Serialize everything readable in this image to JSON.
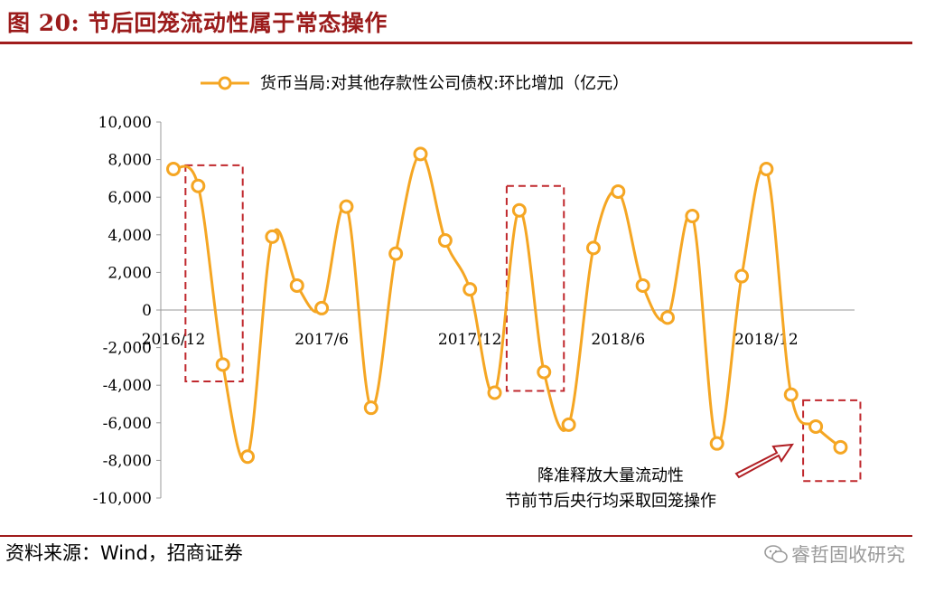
{
  "figure": {
    "title": "图 20:  节后回笼流动性属于常态操作",
    "source": "资料来源：Wind，招商证券",
    "watermark": "睿哲固收研究"
  },
  "colors": {
    "accent": "#a01c1c",
    "series": "#f5a623",
    "box": "#c0282d",
    "arrow": "#b01e23"
  },
  "chart_data": {
    "type": "line",
    "series": [
      {
        "name": "货币当局:对其他存款性公司债权:环比增加（亿元）",
        "values": [
          7500,
          6600,
          -2900,
          -7800,
          3900,
          1300,
          100,
          5500,
          -5200,
          3000,
          8300,
          3700,
          1100,
          -4400,
          5300,
          -3300,
          -6100,
          3300,
          6300,
          1300,
          -400,
          5000,
          -7100,
          1800,
          7500,
          -4500,
          -6200,
          -7300
        ]
      }
    ],
    "x_tick_labels": [
      {
        "label": "2016/12",
        "index": 0
      },
      {
        "label": "2017/6",
        "index": 6
      },
      {
        "label": "2017/12",
        "index": 12
      },
      {
        "label": "2018/6",
        "index": 18
      },
      {
        "label": "2018/12",
        "index": 24
      }
    ],
    "y_ticks": [
      10000,
      8000,
      6000,
      4000,
      2000,
      0,
      -2000,
      -4000,
      -6000,
      -8000,
      -10000
    ],
    "y_tick_labels": [
      "10,000",
      "8,000",
      "6,000",
      "4,000",
      "2,000",
      "0",
      "-2,000",
      "-4,000",
      "-6,000",
      "-8,000",
      "-10,000"
    ],
    "ylim": [
      -10000,
      10000
    ],
    "legend_position": "top",
    "grid": false,
    "annotations": {
      "lines": [
        "降准释放大量流动性",
        "节前节后央行均采取回笼操作"
      ]
    }
  }
}
